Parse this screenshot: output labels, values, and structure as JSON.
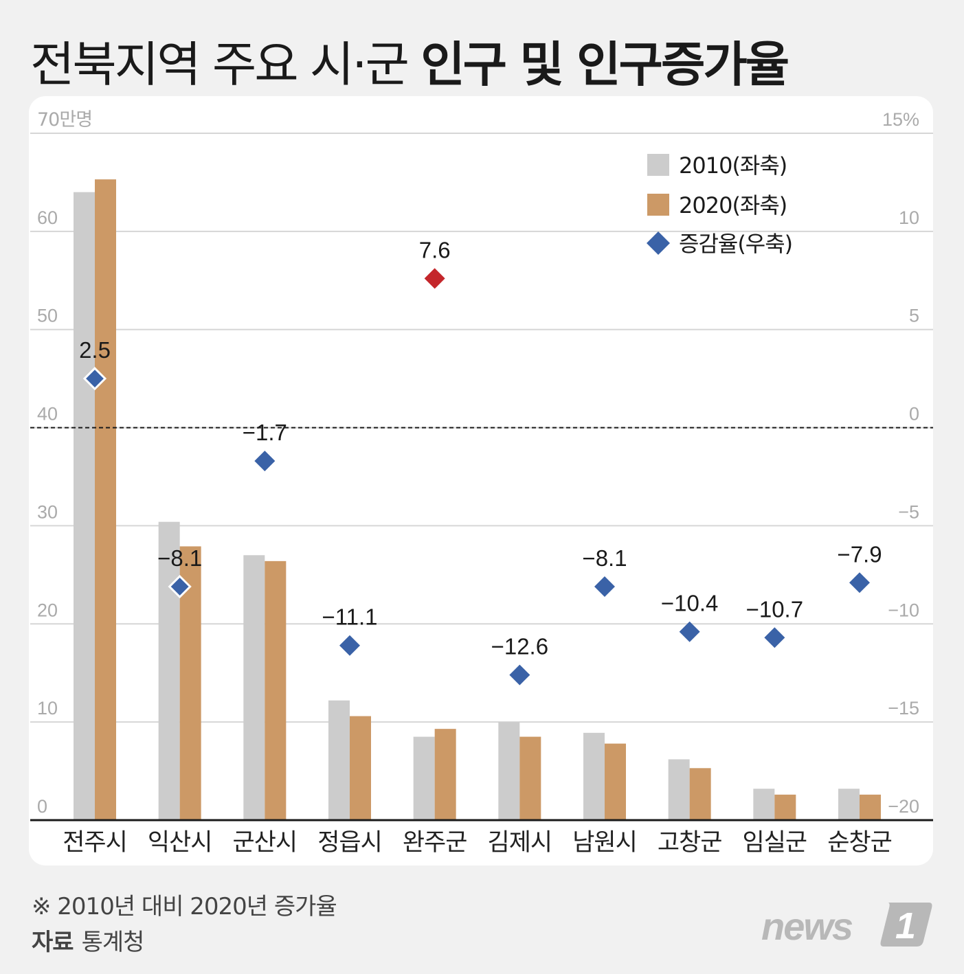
{
  "header": {
    "title_regular": "전북지역 주요 시·군",
    "title_bold": "인구 및 인구증가율"
  },
  "colors": {
    "bar_2010": "#cccccc",
    "bar_2020": "#cc9966",
    "marker": "#3a62a7",
    "marker_highlight": "#c4262b"
  },
  "chart_data": {
    "type": "bar",
    "categories": [
      "전주시",
      "익산시",
      "군산시",
      "정읍시",
      "완주군",
      "김제시",
      "남원시",
      "고창군",
      "임실군",
      "순창군"
    ],
    "series": [
      {
        "name": "2010(좌축)",
        "axis": "left",
        "values": [
          64.0,
          30.4,
          27.0,
          12.2,
          8.5,
          10.0,
          8.9,
          6.2,
          3.2,
          3.2
        ]
      },
      {
        "name": "2020(좌축)",
        "axis": "left",
        "values": [
          65.3,
          27.9,
          26.4,
          10.6,
          9.3,
          8.5,
          7.8,
          5.3,
          2.6,
          2.6
        ]
      },
      {
        "name": "증감율(우축)",
        "axis": "right",
        "type": "scatter",
        "values": [
          2.5,
          -8.1,
          -1.7,
          -11.1,
          7.6,
          -12.6,
          -8.1,
          -10.4,
          -10.7,
          -7.9
        ]
      }
    ],
    "data_labels": [
      "2.5",
      "−8.1",
      "−1.7",
      "−11.1",
      "7.6",
      "−12.6",
      "−8.1",
      "−10.4",
      "−10.7",
      "−7.9"
    ],
    "highlight_index": 4,
    "left_axis": {
      "unit_label": "70만명",
      "ylim": [
        0,
        70
      ],
      "ticks": [
        "0",
        "10",
        "20",
        "30",
        "40",
        "50",
        "60"
      ]
    },
    "right_axis": {
      "unit_label": "15%",
      "ylim": [
        -20,
        15
      ],
      "ticks": [
        "−20",
        "−15",
        "−10",
        "−5",
        "0",
        "5",
        "10"
      ]
    },
    "grid": true,
    "legend_position": "top-right"
  },
  "footer": {
    "note": "※ 2010년 대비 2020년 증가율",
    "source_label": "자료",
    "source_value": "통계청",
    "logo_text": "news",
    "logo_mark": "1"
  }
}
